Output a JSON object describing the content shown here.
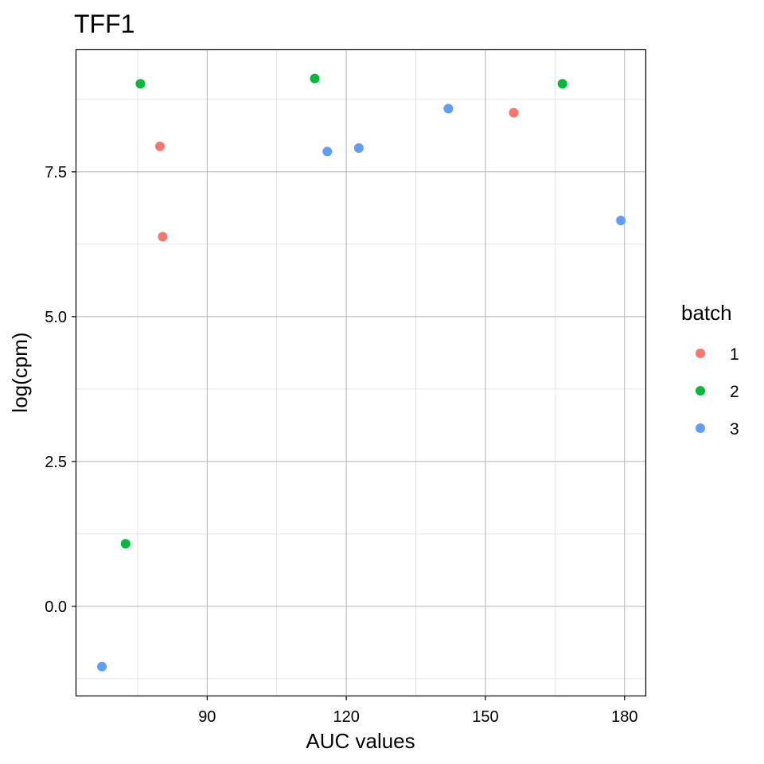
{
  "chart_data": {
    "type": "scatter",
    "title": "TFF1",
    "xlabel": "AUC values",
    "ylabel": "log(cpm)",
    "xlim": [
      61.8,
      184.5
    ],
    "ylim": [
      -1.54,
      9.6
    ],
    "x_ticks": [
      90,
      120,
      150,
      180
    ],
    "x_tick_labels": [
      "90",
      "120",
      "150",
      "180"
    ],
    "y_ticks": [
      0.0,
      2.5,
      5.0,
      7.5
    ],
    "y_tick_labels": [
      "0.0",
      "2.5",
      "5.0",
      "7.5"
    ],
    "grid": true,
    "legend": {
      "title": "batch",
      "placement": "right"
    },
    "series": [
      {
        "name": "1",
        "color": "#F8766D",
        "points": [
          {
            "x": 79.8,
            "y": 7.94
          },
          {
            "x": 80.4,
            "y": 6.38
          },
          {
            "x": 156.1,
            "y": 8.52
          }
        ]
      },
      {
        "name": "2",
        "color": "#00BA38",
        "points": [
          {
            "x": 72.4,
            "y": 1.08
          },
          {
            "x": 75.6,
            "y": 9.02
          },
          {
            "x": 113.2,
            "y": 9.11
          },
          {
            "x": 166.6,
            "y": 9.02
          }
        ]
      },
      {
        "name": "3",
        "color": "#619CFF",
        "points": [
          {
            "x": 67.3,
            "y": -1.04
          },
          {
            "x": 115.9,
            "y": 7.85
          },
          {
            "x": 122.7,
            "y": 7.91
          },
          {
            "x": 142.0,
            "y": 8.59
          },
          {
            "x": 179.2,
            "y": 6.66
          }
        ]
      }
    ]
  }
}
